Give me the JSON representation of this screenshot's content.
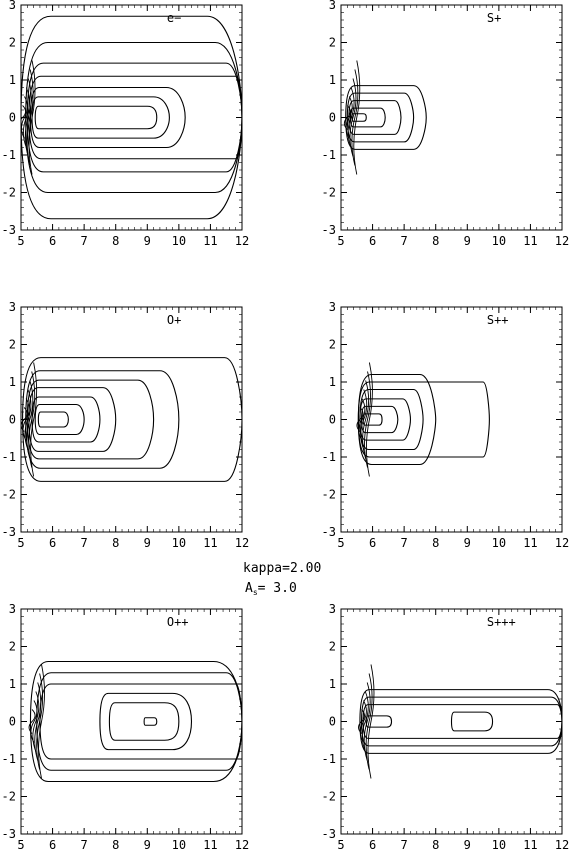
{
  "figure": {
    "center_label": "kappa=2.00",
    "center_label2_main": "A",
    "center_label2_sub": "s",
    "center_label2_value": "=  3.0"
  },
  "chart_data": [
    {
      "type": "contour",
      "title": "e−",
      "xlim": [
        5,
        12
      ],
      "ylim": [
        -3,
        3
      ],
      "xticks": [
        "5",
        "6",
        "7",
        "8",
        "9",
        "10",
        "11",
        "12"
      ],
      "yticks": [
        "-3",
        "-2",
        "-1",
        "0",
        "1",
        "2",
        "3"
      ],
      "contours": [
        {
          "x0": 5.45,
          "x1": 9.3,
          "h": 0.3,
          "tail": 0.3,
          "tip": 0.18
        },
        {
          "x0": 5.35,
          "x1": 9.7,
          "h": 0.55,
          "tail": 0.5,
          "tip": 0.22
        },
        {
          "x0": 5.3,
          "x1": 10.2,
          "h": 0.8,
          "tail": 0.6,
          "tip": 0.3
        },
        {
          "x0": 5.25,
          "x1": 12,
          "h": 1.1,
          "tail": 0.2,
          "tip": 0.2
        },
        {
          "x0": 5.2,
          "x1": 12,
          "h": 1.45,
          "tail": 0.5,
          "tip": 0.45
        },
        {
          "x0": 5.15,
          "x1": 12,
          "h": 2.0,
          "tail": 0.85,
          "tip": 0.75
        },
        {
          "x0": 5.0,
          "x1": 12,
          "h": 2.7,
          "tail": 1.1,
          "tip": 1.05
        }
      ]
    },
    {
      "type": "contour",
      "title": "S+",
      "xlim": [
        5,
        12
      ],
      "ylim": [
        -3,
        3
      ],
      "xticks": [
        "5",
        "6",
        "7",
        "8",
        "9",
        "10",
        "11",
        "12"
      ],
      "yticks": [
        "-3",
        "-2",
        "-1",
        "0",
        "1",
        "2",
        "3"
      ],
      "contours": [
        {
          "x0": 5.35,
          "x1": 5.8,
          "h": 0.1,
          "tail": 0.1,
          "tip": 0.08
        },
        {
          "x0": 5.3,
          "x1": 6.4,
          "h": 0.25,
          "tail": 0.15,
          "tip": 0.1
        },
        {
          "x0": 5.25,
          "x1": 6.9,
          "h": 0.45,
          "tail": 0.2,
          "tip": 0.12
        },
        {
          "x0": 5.2,
          "x1": 7.3,
          "h": 0.65,
          "tail": 0.3,
          "tip": 0.15
        },
        {
          "x0": 5.15,
          "x1": 7.7,
          "h": 0.85,
          "tail": 0.4,
          "tip": 0.2
        }
      ]
    },
    {
      "type": "contour",
      "title": "O+",
      "xlim": [
        5,
        12
      ],
      "ylim": [
        -3,
        3
      ],
      "xticks": [
        "5",
        "6",
        "7",
        "8",
        "9",
        "10",
        "11",
        "12"
      ],
      "yticks": [
        "-3",
        "-2",
        "-1",
        "0",
        "1",
        "2",
        "3"
      ],
      "contours": [
        {
          "x0": 5.55,
          "x1": 6.5,
          "h": 0.2,
          "tail": 0.15,
          "tip": 0.1
        },
        {
          "x0": 5.45,
          "x1": 7.0,
          "h": 0.4,
          "tail": 0.25,
          "tip": 0.15
        },
        {
          "x0": 5.35,
          "x1": 7.5,
          "h": 0.6,
          "tail": 0.3,
          "tip": 0.2
        },
        {
          "x0": 5.25,
          "x1": 8.0,
          "h": 0.85,
          "tail": 0.4,
          "tip": 0.25
        },
        {
          "x0": 5.2,
          "x1": 9.2,
          "h": 1.05,
          "tail": 0.5,
          "tip": 0.35
        },
        {
          "x0": 5.15,
          "x1": 10.0,
          "h": 1.3,
          "tail": 0.6,
          "tip": 0.45
        },
        {
          "x0": 5.05,
          "x1": 12,
          "h": 1.65,
          "tail": 0.55,
          "tip": 0.5
        }
      ]
    },
    {
      "type": "contour",
      "title": "S++",
      "xlim": [
        5,
        12
      ],
      "ylim": [
        -3,
        3
      ],
      "xticks": [
        "5",
        "6",
        "7",
        "8",
        "9",
        "10",
        "11",
        "12"
      ],
      "yticks": [
        "-3",
        "-2",
        "-1",
        "0",
        "1",
        "2",
        "3"
      ],
      "contours": [
        {
          "x0": 5.7,
          "x1": 6.3,
          "h": 0.15,
          "tail": 0.1,
          "tip": 0.08
        },
        {
          "x0": 5.65,
          "x1": 6.8,
          "h": 0.35,
          "tail": 0.2,
          "tip": 0.1
        },
        {
          "x0": 5.6,
          "x1": 7.2,
          "h": 0.55,
          "tail": 0.25,
          "tip": 0.12
        },
        {
          "x0": 5.6,
          "x1": 7.6,
          "h": 0.8,
          "tail": 0.3,
          "tip": 0.15
        },
        {
          "x0": 5.55,
          "x1": 9.7,
          "h": 1.0,
          "tail": 0.2,
          "tip": 0.15
        },
        {
          "x0": 5.55,
          "x1": 8.0,
          "h": 1.2,
          "tail": 0.5,
          "tip": 0.25
        }
      ]
    },
    {
      "type": "contour",
      "title": "O++",
      "xlim": [
        5,
        12
      ],
      "ylim": [
        -3,
        3
      ],
      "xticks": [
        "5",
        "6",
        "7",
        "8",
        "9",
        "10",
        "11",
        "12"
      ],
      "yticks": [
        "-3",
        "-2",
        "-1",
        "0",
        "1",
        "2",
        "3"
      ],
      "contours": [
        {
          "x0": 8.9,
          "x1": 9.3,
          "h": 0.1,
          "tail": 0.08,
          "tip": 0.06
        },
        {
          "x0": 7.8,
          "x1": 10.0,
          "h": 0.5,
          "tail": 0.45,
          "tip": 0.35
        },
        {
          "x0": 7.5,
          "x1": 10.4,
          "h": 0.75,
          "tail": 0.6,
          "tip": 0.4
        },
        {
          "x0": 5.6,
          "x1": 12,
          "h": 1.0,
          "tail": 0.2,
          "tip": 0.2
        },
        {
          "x0": 5.5,
          "x1": 12,
          "h": 1.3,
          "tail": 0.5,
          "tip": 0.45
        },
        {
          "x0": 5.3,
          "x1": 12,
          "h": 1.6,
          "tail": 0.9,
          "tip": 0.8
        }
      ]
    },
    {
      "type": "contour",
      "title": "S+++",
      "xlim": [
        5,
        12
      ],
      "ylim": [
        -3,
        3
      ],
      "xticks": [
        "5",
        "6",
        "7",
        "8",
        "9",
        "10",
        "11",
        "12"
      ],
      "yticks": [
        "-3",
        "-2",
        "-1",
        "0",
        "1",
        "2",
        "3"
      ],
      "contours": [
        {
          "x0": 5.8,
          "x1": 6.6,
          "h": 0.15,
          "tail": 0.15,
          "tip": 0.1
        },
        {
          "x0": 8.5,
          "x1": 9.8,
          "h": 0.25,
          "tail": 0.25,
          "tip": 0.15
        },
        {
          "x0": 5.7,
          "x1": 12,
          "h": 0.45,
          "tail": 0.15,
          "tip": 0.15
        },
        {
          "x0": 5.65,
          "x1": 12,
          "h": 0.65,
          "tail": 0.35,
          "tip": 0.3
        },
        {
          "x0": 5.6,
          "x1": 12,
          "h": 0.85,
          "tail": 0.45,
          "tip": 0.45
        }
      ]
    }
  ]
}
